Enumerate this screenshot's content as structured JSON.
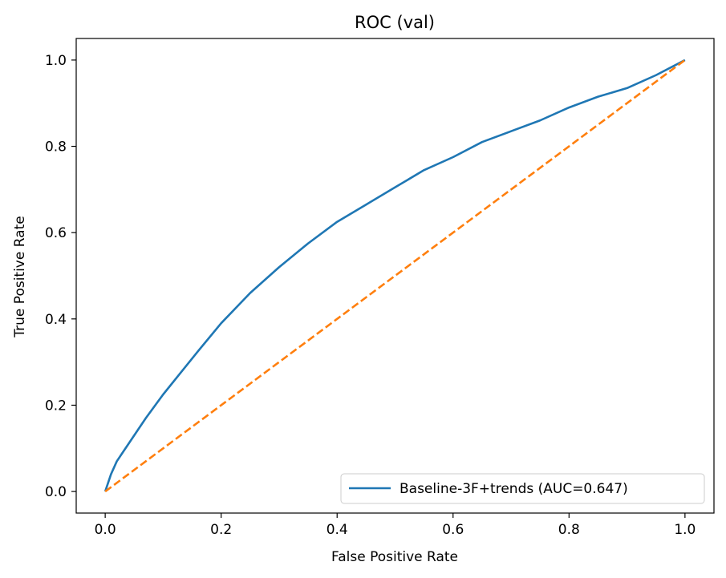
{
  "chart_data": {
    "type": "line",
    "title": "ROC (val)",
    "xlabel": "False Positive Rate",
    "ylabel": "True Positive Rate",
    "xlim": [
      -0.05,
      1.05
    ],
    "ylim": [
      -0.05,
      1.05
    ],
    "xticks": [
      0.0,
      0.2,
      0.4,
      0.6,
      0.8,
      1.0
    ],
    "yticks": [
      0.0,
      0.2,
      0.4,
      0.6,
      0.8,
      1.0
    ],
    "xtick_labels": [
      "0.0",
      "0.2",
      "0.4",
      "0.6",
      "0.8",
      "1.0"
    ],
    "ytick_labels": [
      "0.0",
      "0.2",
      "0.4",
      "0.6",
      "0.8",
      "1.0"
    ],
    "grid": false,
    "legend_position": "lower-right",
    "series": [
      {
        "name": "Baseline-3F+trends (AUC=0.647)",
        "color": "#1f77b4",
        "style": "solid",
        "x": [
          0.0,
          0.01,
          0.02,
          0.03,
          0.05,
          0.07,
          0.1,
          0.13,
          0.16,
          0.2,
          0.25,
          0.3,
          0.35,
          0.4,
          0.45,
          0.5,
          0.55,
          0.6,
          0.65,
          0.7,
          0.75,
          0.8,
          0.85,
          0.9,
          0.95,
          1.0
        ],
        "y": [
          0.0,
          0.04,
          0.07,
          0.09,
          0.13,
          0.17,
          0.225,
          0.275,
          0.325,
          0.39,
          0.46,
          0.52,
          0.575,
          0.625,
          0.665,
          0.705,
          0.745,
          0.775,
          0.81,
          0.835,
          0.86,
          0.89,
          0.915,
          0.935,
          0.965,
          1.0
        ]
      },
      {
        "name": "",
        "color": "#ff7f0e",
        "style": "dashed",
        "x": [
          0.0,
          1.0
        ],
        "y": [
          0.0,
          1.0
        ]
      }
    ]
  }
}
